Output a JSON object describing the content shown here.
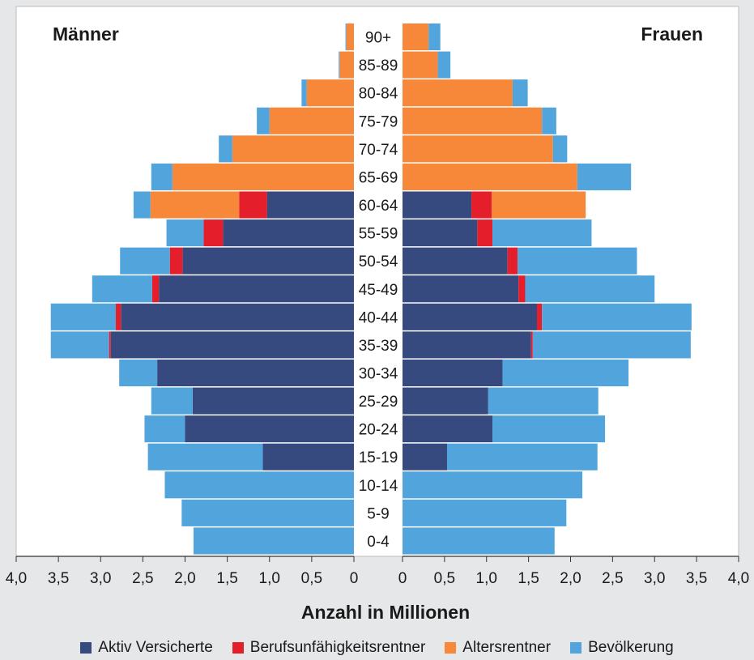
{
  "colors": {
    "aktiv": "#374a7f",
    "bu": "#e41e2b",
    "alters": "#f7883a",
    "bev": "#52a5dc",
    "background": "#e6e7e8",
    "plot_background": "#ffffff"
  },
  "chart_data": {
    "type": "bar",
    "subtype": "population-pyramid",
    "xlabel": "Anzahl in Millionen",
    "left_label": "Männer",
    "right_label": "Frauen",
    "xlim": [
      0,
      4.0
    ],
    "x_ticks": [
      4.0,
      3.5,
      3.0,
      2.5,
      2.0,
      1.5,
      1.0,
      0.5,
      0
    ],
    "x_tick_labels_left": [
      "4,0",
      "3,5",
      "3,0",
      "2,5",
      "2,0",
      "1,5",
      "1,0",
      "0,5",
      "0"
    ],
    "x_tick_labels_right": [
      "0",
      "0,5",
      "1,0",
      "1,5",
      "2,0",
      "2,5",
      "3,0",
      "3,5",
      "4,0"
    ],
    "grid": false,
    "legend_position": "bottom",
    "categories": [
      "90+",
      "85-89",
      "80-84",
      "75-79",
      "70-74",
      "65-69",
      "60-64",
      "55-59",
      "50-54",
      "45-49",
      "40-44",
      "35-39",
      "30-34",
      "25-29",
      "20-24",
      "15-19",
      "10-14",
      "5-9",
      "0-4"
    ],
    "series": [
      {
        "name": "Aktiv Versicherte",
        "key": "aktiv",
        "color": "#374a7f",
        "male": [
          0,
          0,
          0,
          0,
          0,
          0,
          1.03,
          1.55,
          2.03,
          2.31,
          2.76,
          2.88,
          2.33,
          1.91,
          2.0,
          1.08,
          0,
          0,
          0
        ],
        "female": [
          0,
          0,
          0,
          0,
          0,
          0,
          0.82,
          0.89,
          1.25,
          1.38,
          1.6,
          1.53,
          1.19,
          1.02,
          1.07,
          0.53,
          0,
          0,
          0
        ]
      },
      {
        "name": "Berufsunfähigkeitsrentner",
        "key": "bu",
        "color": "#e41e2b",
        "male": [
          0,
          0,
          0,
          0,
          0,
          0,
          0.33,
          0.23,
          0.15,
          0.08,
          0.06,
          0.02,
          0,
          0,
          0,
          0,
          0,
          0,
          0
        ],
        "female": [
          0,
          0,
          0,
          0,
          0,
          0,
          0.24,
          0.18,
          0.12,
          0.08,
          0.06,
          0.02,
          0,
          0,
          0,
          0,
          0,
          0,
          0
        ]
      },
      {
        "name": "Altersrentner",
        "key": "alters",
        "color": "#f7883a",
        "male": [
          0.09,
          0.17,
          0.56,
          1.0,
          1.44,
          2.15,
          1.05,
          0,
          0,
          0,
          0,
          0,
          0,
          0,
          0,
          0,
          0,
          0,
          0
        ],
        "female": [
          0.31,
          0.42,
          1.31,
          1.66,
          1.79,
          2.08,
          1.12,
          0,
          0,
          0,
          0,
          0,
          0,
          0,
          0,
          0,
          0,
          0,
          0
        ]
      },
      {
        "name": "Bevölkerung",
        "key": "bev",
        "color": "#52a5dc",
        "male": [
          0.1,
          0.18,
          0.62,
          1.15,
          1.6,
          2.4,
          2.61,
          2.22,
          2.77,
          3.1,
          3.59,
          3.59,
          2.78,
          2.4,
          2.48,
          2.44,
          2.24,
          2.04,
          1.9
        ],
        "female": [
          0.45,
          0.57,
          1.49,
          1.83,
          1.96,
          2.72,
          2.18,
          2.25,
          2.79,
          3.0,
          3.44,
          3.43,
          2.69,
          2.33,
          2.41,
          2.32,
          2.14,
          1.95,
          1.81
        ]
      }
    ]
  }
}
